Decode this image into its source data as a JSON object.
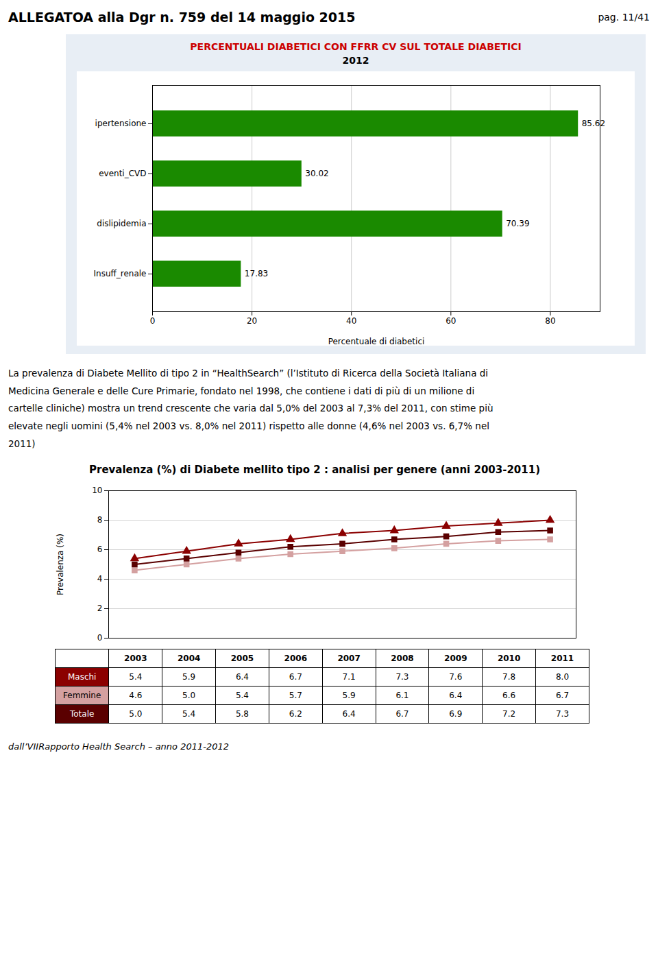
{
  "chart_data": [
    {
      "type": "bar",
      "orientation": "horizontal",
      "title": "PERCENTUALI DIABETICI CON FFRR CV SUL TOTALE DIABETICI",
      "subtitle": "2012",
      "categories": [
        "Insuff_renale",
        "dislipidemia",
        "eventi_CVD",
        "ipertensione"
      ],
      "values": [
        17.83,
        70.39,
        30.02,
        85.62
      ],
      "color": "#1a8a00",
      "xlabel": "Percentuale di diabetici",
      "xlim": [
        0,
        90
      ],
      "xticks": [
        0,
        20,
        40,
        60,
        80
      ],
      "grid": true,
      "data_labels": true
    },
    {
      "type": "line",
      "title": "Prevalenza (%)  di Diabete mellito tipo 2 : analisi per genere (anni 2003-2011)",
      "x": [
        2003,
        2004,
        2005,
        2006,
        2007,
        2008,
        2009,
        2010,
        2011
      ],
      "xlim": [
        2002.5,
        2011.5
      ],
      "series": [
        {
          "name": "Maschi",
          "color": "#8b0000",
          "marker": "triangle",
          "values": [
            5.4,
            5.9,
            6.4,
            6.7,
            7.1,
            7.3,
            7.6,
            7.8,
            8.0
          ],
          "value_labels": [
            "5.4",
            "5.9",
            "6.4",
            "6.7",
            "7.1",
            "7.3",
            "7.6",
            "7.8",
            "8.0"
          ]
        },
        {
          "name": "Femmine",
          "color": "#d4a0a0",
          "marker": "square",
          "values": [
            4.6,
            5.0,
            5.4,
            5.7,
            5.9,
            6.1,
            6.4,
            6.6,
            6.7
          ],
          "value_labels": [
            "4.6",
            "5.0",
            "5.4",
            "5.7",
            "5.9",
            "6.1",
            "6.4",
            "6.6",
            "6.7"
          ]
        },
        {
          "name": "Totale",
          "color": "#5a0000",
          "marker": "square",
          "values": [
            5.0,
            5.4,
            5.8,
            6.2,
            6.4,
            6.7,
            6.9,
            7.2,
            7.3
          ],
          "value_labels": [
            "5.0",
            "5.4",
            "5.8",
            "6.2",
            "6.4",
            "6.7",
            "6.9",
            "7.2",
            "7.3"
          ]
        }
      ],
      "ylabel": "Prevalenza (%)",
      "ylim": [
        0,
        10
      ],
      "yticks": [
        0,
        2,
        4,
        6,
        8,
        10
      ],
      "grid": true,
      "tick_labels": "y",
      "data_labels": true
    }
  ],
  "annotations": [
    "ALLEGATOA alla Dgr n.  759 del 14 maggio 2015",
    "pag. 11/41",
    "La prevalenza di Diabete Mellito di tipo 2 in “HealthSearch” (l’Istituto di Ricerca della Società Italiana di",
    "Medicina Generale e delle Cure Primarie, fondato nel 1998, che contiene i dati di più di un milione di",
    "cartelle cliniche) mostra un trend crescente che varia dal 5,0% del 2003 al 7,3% del 2011, con stime più",
    "elevate negli uomini (5,4% nel 2003 vs. 8,0% nel 2011) rispetto alle donne (4,6% nel 2003 vs. 6,7% nel",
    "2011)",
    "dall’VIIRapporto Health Search – anno 2011-2012"
  ]
}
